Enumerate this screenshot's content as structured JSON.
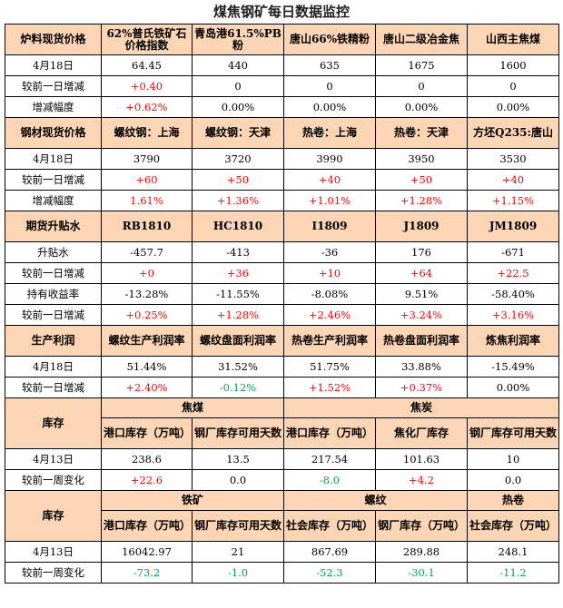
{
  "title": "煤焦钢矿每日数据监控",
  "sections": [
    {
      "type": "simple",
      "header": [
        "炉料现货价格",
        "62%普氏铁矿石价格指数",
        "青岛港61.5%PB粉",
        "唐山66%铁精粉",
        "唐山二级冶金焦",
        "山西主焦煤"
      ],
      "rows": [
        {
          "label": "4月18日",
          "cells": [
            {
              "v": "64.45",
              "c": "black"
            },
            {
              "v": "440",
              "c": "black"
            },
            {
              "v": "635",
              "c": "black"
            },
            {
              "v": "1675",
              "c": "black"
            },
            {
              "v": "1600",
              "c": "black"
            }
          ]
        },
        {
          "label": "较前一日增减",
          "cells": [
            {
              "v": "+0.40",
              "c": "red"
            },
            {
              "v": "0",
              "c": "black"
            },
            {
              "v": "0",
              "c": "black"
            },
            {
              "v": "0",
              "c": "black"
            },
            {
              "v": "0",
              "c": "black"
            }
          ]
        },
        {
          "label": "增减幅度",
          "cells": [
            {
              "v": "+0.62%",
              "c": "red"
            },
            {
              "v": "0.00%",
              "c": "black"
            },
            {
              "v": "0.00%",
              "c": "black"
            },
            {
              "v": "0.00%",
              "c": "black"
            },
            {
              "v": "0.00%",
              "c": "black"
            }
          ]
        }
      ]
    },
    {
      "type": "simple",
      "header": [
        "钢材现货价格",
        "螺纹钢：上海",
        "螺纹钢：天津",
        "热卷：上海",
        "热卷：天津",
        "方坯Q235:唐山"
      ],
      "rows": [
        {
          "label": "4月18日",
          "cells": [
            {
              "v": "3790",
              "c": "black"
            },
            {
              "v": "3720",
              "c": "black"
            },
            {
              "v": "3990",
              "c": "black"
            },
            {
              "v": "3950",
              "c": "black"
            },
            {
              "v": "3530",
              "c": "black"
            }
          ]
        },
        {
          "label": "较前一日增减",
          "cells": [
            {
              "v": "+60",
              "c": "red"
            },
            {
              "v": "+50",
              "c": "red"
            },
            {
              "v": "+40",
              "c": "red"
            },
            {
              "v": "+50",
              "c": "red"
            },
            {
              "v": "+40",
              "c": "red"
            }
          ]
        },
        {
          "label": "增减幅度",
          "cells": [
            {
              "v": "1.61%",
              "c": "red"
            },
            {
              "v": "+1.36%",
              "c": "red"
            },
            {
              "v": "+1.01%",
              "c": "red"
            },
            {
              "v": "+1.28%",
              "c": "red"
            },
            {
              "v": "+1.15%",
              "c": "red"
            }
          ]
        }
      ]
    },
    {
      "type": "simple",
      "header": [
        "期货升贴水",
        "RB1810",
        "HC1810",
        "I1809",
        "J1809",
        "JM1809"
      ],
      "rows": [
        {
          "label": "升贴水",
          "cells": [
            {
              "v": "-457.7",
              "c": "black"
            },
            {
              "v": "-413",
              "c": "black"
            },
            {
              "v": "-36",
              "c": "black"
            },
            {
              "v": "176",
              "c": "black"
            },
            {
              "v": "-671",
              "c": "black"
            }
          ]
        },
        {
          "label": "较前一日增减",
          "cells": [
            {
              "v": "+0",
              "c": "red"
            },
            {
              "v": "+36",
              "c": "red"
            },
            {
              "v": "+10",
              "c": "red"
            },
            {
              "v": "+64",
              "c": "red"
            },
            {
              "v": "+22.5",
              "c": "red"
            }
          ]
        },
        {
          "label": "持有收益率",
          "cells": [
            {
              "v": "-13.28%",
              "c": "black"
            },
            {
              "v": "-11.55%",
              "c": "black"
            },
            {
              "v": "-8.08%",
              "c": "black"
            },
            {
              "v": "9.51%",
              "c": "black"
            },
            {
              "v": "-58.40%",
              "c": "black"
            }
          ]
        },
        {
          "label": "较前一日增减",
          "cells": [
            {
              "v": "+0.25%",
              "c": "red"
            },
            {
              "v": "+1.28%",
              "c": "red"
            },
            {
              "v": "+2.46%",
              "c": "red"
            },
            {
              "v": "+3.24%",
              "c": "red"
            },
            {
              "v": "+3.16%",
              "c": "red"
            }
          ]
        }
      ]
    },
    {
      "type": "simple",
      "header": [
        "生产利润",
        "螺纹生产利润率",
        "螺纹盘面利润率",
        "热卷生产利润率",
        "热卷盘面利润率",
        "炼焦利润率"
      ],
      "rows": [
        {
          "label": "4月18日",
          "cells": [
            {
              "v": "51.44%",
              "c": "black"
            },
            {
              "v": "31.52%",
              "c": "black"
            },
            {
              "v": "51.75%",
              "c": "black"
            },
            {
              "v": "33.88%",
              "c": "black"
            },
            {
              "v": "-15.49%",
              "c": "black"
            }
          ]
        },
        {
          "label": "较前一日增减",
          "cells": [
            {
              "v": "+2.40%",
              "c": "red"
            },
            {
              "v": "-0.12%",
              "c": "green"
            },
            {
              "v": "+1.52%",
              "c": "red"
            },
            {
              "v": "+0.37%",
              "c": "red"
            },
            {
              "v": "0.00%",
              "c": "black"
            }
          ]
        }
      ]
    },
    {
      "type": "inventory",
      "label": "库存",
      "groups": [
        {
          "name": "焦煤",
          "span": 2
        },
        {
          "name": "焦炭",
          "span": 3
        }
      ],
      "subheads": [
        "港口库存（万吨）",
        "钢厂库存可用天数",
        "港口库存（万吨）",
        "焦化厂库存",
        "钢厂库存可用天数"
      ],
      "rows": [
        {
          "label": "4月13日",
          "cells": [
            {
              "v": "238.6",
              "c": "black"
            },
            {
              "v": "13.5",
              "c": "black"
            },
            {
              "v": "217.54",
              "c": "black"
            },
            {
              "v": "101.63",
              "c": "black"
            },
            {
              "v": "10",
              "c": "black"
            }
          ]
        },
        {
          "label": "较前一周变化",
          "cells": [
            {
              "v": "+22.6",
              "c": "red"
            },
            {
              "v": "0.0",
              "c": "black"
            },
            {
              "v": "-8.0",
              "c": "green"
            },
            {
              "v": "+4.2",
              "c": "red"
            },
            {
              "v": "0.0",
              "c": "black"
            }
          ]
        }
      ]
    },
    {
      "type": "inventory",
      "label": "库存",
      "groups": [
        {
          "name": "铁矿",
          "span": 2
        },
        {
          "name": "螺纹",
          "span": 2
        },
        {
          "name": "热卷",
          "span": 1
        }
      ],
      "subheads": [
        "港口库存（万吨）",
        "钢厂库存可用天数",
        "社会库存（万吨）",
        "钢厂库存（万吨）",
        "社会库存（万吨）"
      ],
      "rows": [
        {
          "label": "4月13日",
          "cells": [
            {
              "v": "16042.97",
              "c": "black"
            },
            {
              "v": "21",
              "c": "black"
            },
            {
              "v": "867.69",
              "c": "black"
            },
            {
              "v": "289.88",
              "c": "black"
            },
            {
              "v": "248.1",
              "c": "black"
            }
          ]
        },
        {
          "label": "较前一周变化",
          "cells": [
            {
              "v": "-73.2",
              "c": "green"
            },
            {
              "v": "-1.0",
              "c": "green"
            },
            {
              "v": "-52.3",
              "c": "green"
            },
            {
              "v": "-30.1",
              "c": "green"
            },
            {
              "v": "-11.2",
              "c": "green"
            }
          ]
        }
      ]
    }
  ]
}
